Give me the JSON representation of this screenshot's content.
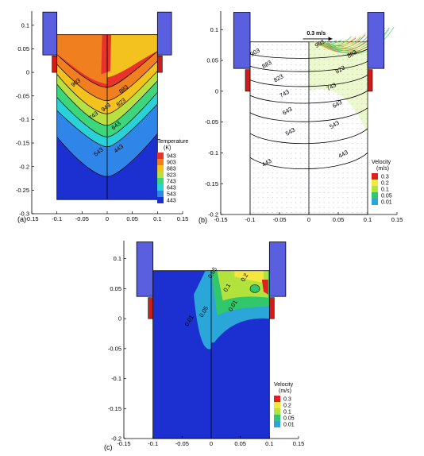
{
  "chart_data": [
    {
      "panel_label": "(a)",
      "type": "contour",
      "xlim": [
        -0.15,
        0.15
      ],
      "ylim": [
        -0.3,
        0.13
      ],
      "x_ticks": [
        "-0.15",
        "-0.1",
        "-0.05",
        "0",
        "0.05",
        "0.1",
        "0.15"
      ],
      "y_ticks": [
        "0.1",
        "0.05",
        "0",
        "-0.05",
        "-0.1",
        "-0.15",
        "-0.2",
        "-0.25",
        "-0.3"
      ],
      "legend": {
        "title": "Temperature",
        "unit": "(K)",
        "levels": [
          "943",
          "903",
          "883",
          "823",
          "743",
          "643",
          "543",
          "443"
        ],
        "colors": [
          "#e8322a",
          "#ef7f1f",
          "#f3c21f",
          "#b9e040",
          "#3ed67a",
          "#2ad1d6",
          "#2f86e8",
          "#1c2fd0"
        ]
      },
      "contour_labels": [
        "943",
        "903",
        "883",
        "823",
        "743",
        "643",
        "543",
        "443"
      ]
    },
    {
      "panel_label": "(b)",
      "type": "contour+vector",
      "xlim": [
        -0.15,
        0.15
      ],
      "ylim": [
        -0.2,
        0.13
      ],
      "x_ticks": [
        "-0.15",
        "-0.1",
        "-0.05",
        "0",
        "0.05",
        "0.1",
        "0.15"
      ],
      "y_ticks": [
        "0.1",
        "0.05",
        "0",
        "-0.05",
        "-0.1",
        "-0.15",
        "-0.2"
      ],
      "reference_vector": "0.3 m/s",
      "legend": {
        "title": "Velocity",
        "unit": "(m/s)",
        "levels": [
          "0.3",
          "0.2",
          "0.1",
          "0.05",
          "0.01"
        ],
        "colors": [
          "#e02020",
          "#f6e640",
          "#b2e23c",
          "#31c76a",
          "#2aa6d9",
          "#1c2fd0"
        ]
      },
      "contour_labels": [
        "903",
        "883",
        "823",
        "743",
        "643",
        "543",
        "443",
        "903",
        "883",
        "823",
        "743",
        "643",
        "543",
        "443"
      ]
    },
    {
      "panel_label": "(c)",
      "type": "contour",
      "xlim": [
        -0.15,
        0.15
      ],
      "ylim": [
        -0.2,
        0.13
      ],
      "x_ticks": [
        "-0.15",
        "-0.1",
        "-0.05",
        "0",
        "0.05",
        "0.1",
        "0.15"
      ],
      "y_ticks": [
        "0.1",
        "0.05",
        "0",
        "-0.05",
        "-0.1",
        "-0.15",
        "-0.2"
      ],
      "legend": {
        "title": "Velocity",
        "unit": "(m/s)",
        "levels": [
          "0.3",
          "0.2",
          "0.1",
          "0.05",
          "0.01"
        ],
        "colors": [
          "#e02020",
          "#f6e640",
          "#b2e23c",
          "#31c76a",
          "#2aa6d9",
          "#1c2fd0"
        ]
      },
      "contour_labels": [
        "0.05",
        "0.2",
        "0.1",
        "0.01",
        "0.01",
        "0.05"
      ]
    }
  ]
}
